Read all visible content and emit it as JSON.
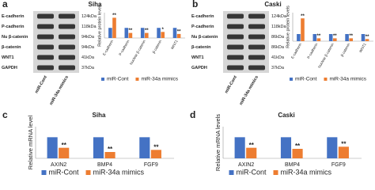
{
  "chart_data": [
    {
      "type": "bar",
      "panel_label": "a",
      "title": "Siha",
      "y_label": "Relative protein levels",
      "categories": [
        "E-cadherin",
        "P-cadherin",
        "Nuclear β-catenin",
        "β-catenin",
        "WNT1"
      ],
      "series": [
        {
          "name": "miR-Cont",
          "color": "#4472c4",
          "values": [
            1,
            1,
            1,
            1,
            1
          ]
        },
        {
          "name": "miR-34a mimics",
          "color": "#ed7d31",
          "values": [
            2.0,
            0.5,
            0.5,
            0.6,
            0.4
          ],
          "significance": [
            "**",
            "**",
            "**",
            "*",
            "**"
          ]
        }
      ],
      "ylim": [
        0,
        2.5
      ]
    },
    {
      "type": "bar",
      "panel_label": "b",
      "title": "Caski",
      "y_label": "Relative protein levels",
      "categories": [
        "E-cadherin",
        "P-cadherin",
        "Nuclear β-catenin",
        "β-catenin",
        "WNT1"
      ],
      "series": [
        {
          "name": "miR-Cont",
          "color": "#4472c4",
          "values": [
            1,
            1,
            1,
            1,
            1
          ]
        },
        {
          "name": "miR-34a mimics",
          "color": "#ed7d31",
          "values": [
            3.2,
            0.4,
            0.4,
            0.4,
            0.3
          ],
          "significance": [
            "**",
            "**",
            "**",
            "**",
            "**"
          ]
        }
      ],
      "ylim": [
        0,
        4
      ]
    },
    {
      "type": "bar",
      "panel_label": "c",
      "title": "Siha",
      "y_label": "Relative mRNA level",
      "categories": [
        "AXIN2",
        "BMP4",
        "FGF9"
      ],
      "series": [
        {
          "name": "miR-Cont",
          "color": "#4472c4",
          "values": [
            1,
            1,
            1
          ]
        },
        {
          "name": "miR-34a mimics",
          "color": "#ed7d31",
          "values": [
            0.5,
            0.3,
            0.4
          ],
          "significance": [
            "**",
            "**",
            "**"
          ]
        }
      ],
      "ylim": [
        0,
        1.5
      ]
    },
    {
      "type": "bar",
      "panel_label": "d",
      "title": "Caski",
      "y_label": "Relative mRNA levels",
      "categories": [
        "AXIN2",
        "BMP4",
        "FGF9"
      ],
      "series": [
        {
          "name": "miR-Cont",
          "color": "#4472c4",
          "values": [
            1,
            1,
            1
          ]
        },
        {
          "name": "miR-34a mimics",
          "color": "#ed7d31",
          "values": [
            0.5,
            0.45,
            0.55
          ],
          "significance": [
            "**",
            "**",
            "**"
          ]
        }
      ],
      "ylim": [
        0,
        1.5
      ]
    }
  ],
  "blots": [
    {
      "rows": [
        {
          "protein": "E-cadherin",
          "size": "124kDa"
        },
        {
          "protein": "P-cadherin",
          "size": "118kDa"
        },
        {
          "protein": "Nu β-catenin",
          "size": "94kDa"
        },
        {
          "protein": "β-catenin",
          "size": "94kDa"
        },
        {
          "protein": "WNT1",
          "size": "41kDa"
        },
        {
          "protein": "GAPDH",
          "size": "37kDa"
        }
      ],
      "lanes": [
        "miR-Cont",
        "miR-34a mimics"
      ]
    },
    {
      "rows": [
        {
          "protein": "E-cadherin",
          "size": "124kDa"
        },
        {
          "protein": "P-cadherin",
          "size": "118kDa"
        },
        {
          "protein": "Nu β-catenin",
          "size": "86kDa"
        },
        {
          "protein": "β-catenin",
          "size": "86kDa"
        },
        {
          "protein": "WNT1",
          "size": "41kDa"
        },
        {
          "protein": "GAPDH",
          "size": "37kDa"
        }
      ],
      "lanes": [
        "miR-Cont",
        "miR-34a mimics"
      ]
    }
  ]
}
